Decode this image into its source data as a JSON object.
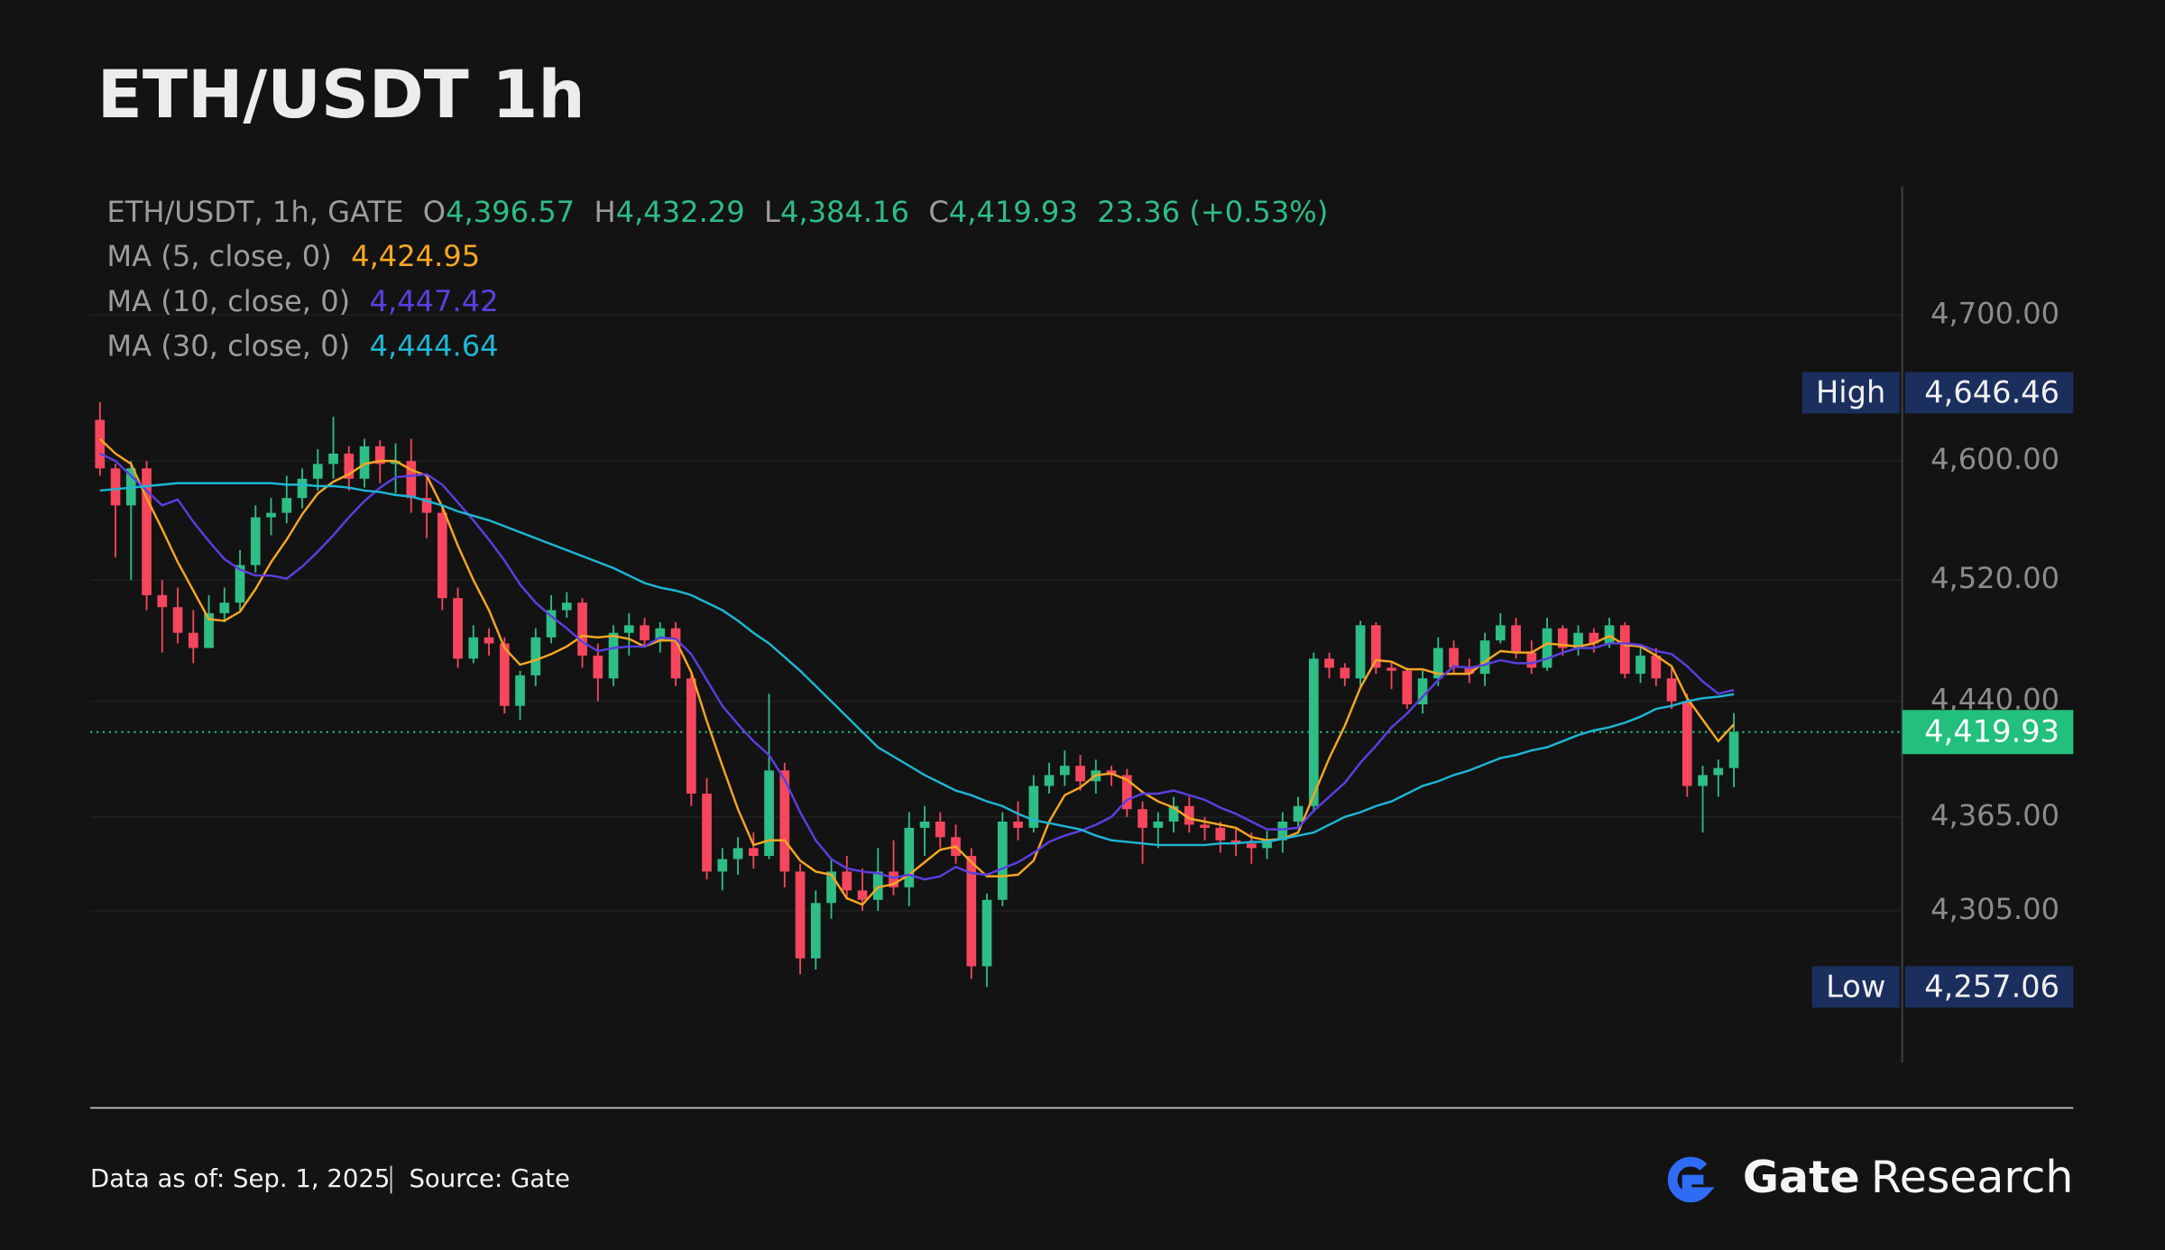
{
  "chart_data": {
    "type": "candlestick",
    "title": "ETH/USDT 1h",
    "ohlc_legend": {
      "symbol": "ETH/USDT, 1h, GATE",
      "items": [
        {
          "key": "O",
          "value": "4,396.57"
        },
        {
          "key": "H",
          "value": "4,432.29"
        },
        {
          "key": "L",
          "value": "4,384.16"
        },
        {
          "key": "C",
          "value": "4,419.93"
        }
      ],
      "change": "23.36 (+0.53%)"
    },
    "log_scale": true,
    "grid": true,
    "ylim": [
      4210,
      4790
    ],
    "yticks": [
      {
        "value": 4700,
        "label": "4,700.00"
      },
      {
        "value": 4600,
        "label": "4,600.00"
      },
      {
        "value": 4520,
        "label": "4,520.00"
      },
      {
        "value": 4440,
        "label": "4,440.00"
      },
      {
        "value": 4365,
        "label": "4,365.00"
      },
      {
        "value": 4305,
        "label": "4,305.00"
      }
    ],
    "up_color": "#2ebd85",
    "down_color": "#f6465d",
    "candles": {
      "open": [
        4628,
        4595,
        4570,
        4595,
        4510,
        4502,
        4485,
        4475,
        4498,
        4505,
        4530,
        4562,
        4565,
        4575,
        4588,
        4598,
        4605,
        4588,
        4610,
        4598,
        4600,
        4575,
        4565,
        4508,
        4468,
        4482,
        4478,
        4437,
        4457,
        4482,
        4500,
        4505,
        4470,
        4455,
        4485,
        4490,
        4480,
        4488,
        4455,
        4380,
        4330,
        4338,
        4345,
        4340,
        4395,
        4330,
        4275,
        4310,
        4330,
        4318,
        4312,
        4330,
        4320,
        4358,
        4362,
        4352,
        4340,
        4270,
        4312,
        4362,
        4358,
        4385,
        4392,
        4398,
        4388,
        4395,
        4392,
        4370,
        4358,
        4362,
        4372,
        4360,
        4358,
        4350,
        4348,
        4345,
        4350,
        4362,
        4372,
        4468,
        4462,
        4455,
        4490,
        4462,
        4460,
        4438,
        4455,
        4475,
        4462,
        4458,
        4480,
        4490,
        4472,
        4462,
        4488,
        4475,
        4485,
        4478,
        4490,
        4458,
        4470,
        4455,
        4440,
        4385,
        4392,
        4396.57
      ],
      "high": [
        4640,
        4598,
        4600,
        4600,
        4520,
        4515,
        4500,
        4510,
        4515,
        4540,
        4570,
        4575,
        4590,
        4595,
        4608,
        4630,
        4610,
        4615,
        4614,
        4612,
        4615,
        4590,
        4570,
        4515,
        4490,
        4488,
        4482,
        4460,
        4488,
        4510,
        4512,
        4508,
        4478,
        4490,
        4498,
        4495,
        4492,
        4492,
        4458,
        4390,
        4345,
        4352,
        4355,
        4445,
        4400,
        4335,
        4318,
        4338,
        4340,
        4332,
        4345,
        4350,
        4368,
        4372,
        4368,
        4360,
        4345,
        4316,
        4368,
        4375,
        4392,
        4400,
        4408,
        4405,
        4402,
        4398,
        4396,
        4375,
        4368,
        4378,
        4378,
        4365,
        4362,
        4358,
        4355,
        4356,
        4368,
        4378,
        4472,
        4472,
        4465,
        4493,
        4492,
        4466,
        4462,
        4460,
        4482,
        4480,
        4468,
        4485,
        4498,
        4495,
        4480,
        4495,
        4490,
        4490,
        4488,
        4495,
        4492,
        4476,
        4475,
        4462,
        4445,
        4398,
        4402,
        4432.29
      ],
      "low": [
        4590,
        4535,
        4520,
        4500,
        4472,
        4478,
        4465,
        4475,
        4492,
        4500,
        4525,
        4550,
        4558,
        4568,
        4580,
        4588,
        4580,
        4582,
        4585,
        4578,
        4565,
        4548,
        4500,
        4462,
        4465,
        4470,
        4432,
        4428,
        4450,
        4478,
        4495,
        4462,
        4440,
        4450,
        4470,
        4475,
        4472,
        4450,
        4372,
        4325,
        4318,
        4328,
        4332,
        4338,
        4320,
        4265,
        4268,
        4300,
        4312,
        4305,
        4305,
        4315,
        4308,
        4340,
        4345,
        4335,
        4262,
        4257,
        4308,
        4350,
        4355,
        4380,
        4385,
        4382,
        4380,
        4385,
        4365,
        4335,
        4345,
        4355,
        4355,
        4350,
        4342,
        4340,
        4335,
        4338,
        4342,
        4358,
        4368,
        4455,
        4450,
        4450,
        4458,
        4448,
        4435,
        4432,
        4450,
        4458,
        4452,
        4450,
        4478,
        4468,
        4458,
        4460,
        4470,
        4470,
        4472,
        4475,
        4455,
        4452,
        4450,
        4435,
        4378,
        4355,
        4378,
        4384.16
      ],
      "close": [
        4595,
        4570,
        4595,
        4510,
        4502,
        4485,
        4475,
        4498,
        4505,
        4530,
        4562,
        4565,
        4575,
        4588,
        4598,
        4605,
        4588,
        4610,
        4598,
        4600,
        4575,
        4565,
        4508,
        4468,
        4482,
        4478,
        4437,
        4457,
        4482,
        4500,
        4505,
        4470,
        4455,
        4485,
        4490,
        4480,
        4488,
        4455,
        4380,
        4330,
        4338,
        4345,
        4340,
        4395,
        4330,
        4275,
        4310,
        4330,
        4318,
        4312,
        4330,
        4320,
        4358,
        4362,
        4352,
        4340,
        4270,
        4312,
        4362,
        4358,
        4385,
        4392,
        4398,
        4388,
        4395,
        4392,
        4370,
        4358,
        4362,
        4372,
        4360,
        4358,
        4350,
        4348,
        4345,
        4350,
        4362,
        4372,
        4468,
        4462,
        4455,
        4490,
        4462,
        4460,
        4438,
        4455,
        4475,
        4462,
        4458,
        4480,
        4490,
        4472,
        4462,
        4488,
        4475,
        4485,
        4478,
        4490,
        4458,
        4470,
        4455,
        4440,
        4385,
        4392,
        4396.57,
        4419.93
      ]
    },
    "series": [
      {
        "name": "MA (5, close, 0)",
        "color": "#f5a623",
        "last_label": "4,424.95",
        "values": [
          4615,
          4605,
          4598,
          4575,
          4554,
          4532,
          4513,
          4494,
          4493,
          4499,
          4514,
          4532,
          4547,
          4564,
          4578,
          4586,
          4591,
          4598,
          4600,
          4600,
          4594,
          4590,
          4569,
          4543,
          4520,
          4500,
          4475,
          4464,
          4467,
          4471,
          4476,
          4483,
          4482,
          4483,
          4481,
          4476,
          4480,
          4480,
          4459,
          4427,
          4398,
          4370,
          4347,
          4350,
          4350,
          4337,
          4330,
          4328,
          4313,
          4309,
          4320,
          4322,
          4328,
          4336,
          4344,
          4346,
          4336,
          4327,
          4327,
          4328,
          4337,
          4362,
          4379,
          4384,
          4392,
          4393,
          4389,
          4381,
          4375,
          4371,
          4364,
          4362,
          4360,
          4358,
          4352,
          4350,
          4351,
          4355,
          4379,
          4403,
          4424,
          4449,
          4467,
          4466,
          4461,
          4461,
          4458,
          4458,
          4458,
          4466,
          4473,
          4472,
          4472,
          4478,
          4477,
          4476,
          4478,
          4483,
          4477,
          4476,
          4470,
          4463,
          4442,
          4428,
          4414,
          4424.95
        ]
      },
      {
        "name": "MA (10, close, 0)",
        "color": "#5b3fe0",
        "last_label": "4,447.42",
        "values": [
          4605,
          4600,
          4590,
          4580,
          4570,
          4574,
          4559,
          4546,
          4534,
          4527,
          4523,
          4523,
          4521,
          4529,
          4539,
          4550,
          4562,
          4573,
          4582,
          4589,
          4590,
          4591,
          4584,
          4572,
          4560,
          4547,
          4533,
          4517,
          4505,
          4496,
          4488,
          4479,
          4473,
          4475,
          4476,
          4476,
          4482,
          4481,
          4471,
          4454,
          4437,
          4425,
          4414,
          4405,
          4389,
          4368,
          4350,
          4338,
          4332,
          4330,
          4329,
          4326,
          4328,
          4325,
          4327,
          4333,
          4329,
          4328,
          4332,
          4336,
          4342,
          4349,
          4353,
          4356,
          4360,
          4365,
          4376,
          4380,
          4380,
          4382,
          4379,
          4376,
          4371,
          4367,
          4362,
          4357,
          4357,
          4358,
          4369,
          4378,
          4387,
          4400,
          4411,
          4423,
          4432,
          4443,
          4454,
          4463,
          4462,
          4464,
          4467,
          4465,
          4465,
          4468,
          4472,
          4475,
          4475,
          4478,
          4478,
          4477,
          4473,
          4471,
          4463,
          4453,
          4445,
          4447.42
        ]
      },
      {
        "name": "MA (30, close, 0)",
        "color": "#1fb6d4",
        "last_label": "4,444.64",
        "values": [
          4580,
          4581,
          4582,
          4583,
          4584,
          4585,
          4585,
          4585,
          4585,
          4585,
          4585,
          4585,
          4584,
          4584,
          4583,
          4583,
          4582,
          4580,
          4579,
          4577,
          4576,
          4573,
          4570,
          4566,
          4563,
          4560,
          4556,
          4552,
          4548,
          4544,
          4540,
          4536,
          4532,
          4528,
          4523,
          4518,
          4515,
          4513,
          4510,
          4505,
          4500,
          4493,
          4485,
          4478,
          4469,
          4460,
          4450,
          4440,
          4430,
          4420,
          4410,
          4404,
          4398,
          4392,
          4387,
          4382,
          4379,
          4375,
          4372,
          4367,
          4363,
          4361,
          4359,
          4357,
          4353,
          4350,
          4349,
          4348,
          4347,
          4347,
          4347,
          4347,
          4348,
          4348,
          4349,
          4349,
          4351,
          4353,
          4355,
          4360,
          4365,
          4368,
          4372,
          4375,
          4380,
          4385,
          4388,
          4392,
          4395,
          4399,
          4403,
          4405,
          4408,
          4410,
          4414,
          4418,
          4421,
          4423,
          4426,
          4430,
          4435,
          4437,
          4440,
          4442,
          4443,
          4444.64
        ]
      }
    ],
    "markers": [
      {
        "label": "High",
        "value": 4646.46,
        "value_label": "4,646.46"
      },
      {
        "label": "Low",
        "value": 4257.06,
        "value_label": "4,257.06"
      }
    ],
    "last_price": {
      "value": 4419.93,
      "label": "4,419.93",
      "color": "#22c07c"
    }
  },
  "footer": {
    "date_note": "Data as of: Sep. 1, 2025",
    "source": "Source: Gate",
    "brand": "Gate",
    "brand_suffix": "Research"
  }
}
